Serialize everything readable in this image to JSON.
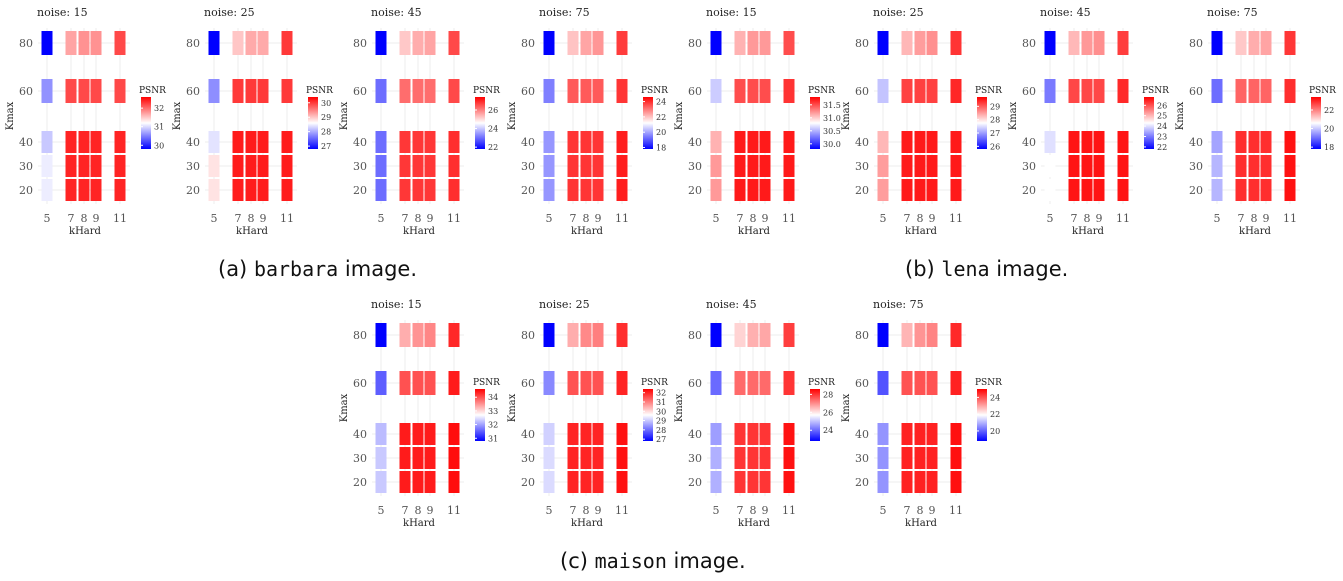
{
  "captions": [
    {
      "prefix": "(a) ",
      "mono": "barbara",
      "suffix": " image."
    },
    {
      "prefix": "(b) ",
      "mono": "lena",
      "suffix": " image."
    },
    {
      "prefix": "(c) ",
      "mono": "maison",
      "suffix": " image."
    }
  ],
  "colors": {
    "low": "#0000ff",
    "mid": "#ffffff",
    "high": "#ff0000",
    "grid": "#ececec"
  },
  "chart_data": [
    {
      "type": "heatmap",
      "title": "noise: 15",
      "xlabel": "kHard",
      "ylabel": "Kmax",
      "x_ticks": [
        5,
        7,
        8,
        9,
        11
      ],
      "y_ticks": [
        20,
        30,
        40,
        60,
        80
      ],
      "legend_title": "PSNR",
      "legend_ticks": [
        "32",
        "31",
        "30"
      ],
      "color_range": [
        29.8,
        32.6
      ],
      "values": [
        [
          31.1,
          32.4,
          32.4,
          32.4,
          32.4
        ],
        [
          31.1,
          32.4,
          32.4,
          32.4,
          32.4
        ],
        [
          30.9,
          32.4,
          32.4,
          32.4,
          32.4
        ],
        [
          30.6,
          32.2,
          32.2,
          32.2,
          32.2
        ],
        [
          29.8,
          31.7,
          31.8,
          31.8,
          32.2
        ]
      ]
    },
    {
      "type": "heatmap",
      "title": "noise: 25",
      "xlabel": "kHard",
      "ylabel": "Kmax",
      "x_ticks": [
        5,
        7,
        8,
        9,
        11
      ],
      "y_ticks": [
        20,
        30,
        40,
        60,
        80
      ],
      "legend_title": "PSNR",
      "legend_ticks": [
        "30",
        "29",
        "28",
        "27"
      ],
      "color_range": [
        26.8,
        30.4
      ],
      "values": [
        [
          28.8,
          30.2,
          30.2,
          30.2,
          30.2
        ],
        [
          28.8,
          30.2,
          30.2,
          30.2,
          30.2
        ],
        [
          28.4,
          30.2,
          30.2,
          30.2,
          30.2
        ],
        [
          27.8,
          30.0,
          30.0,
          30.0,
          30.0
        ],
        [
          26.8,
          29.0,
          29.2,
          29.2,
          30.0
        ]
      ]
    },
    {
      "type": "heatmap",
      "title": "noise: 45",
      "xlabel": "kHard",
      "ylabel": "Kmax",
      "x_ticks": [
        5,
        7,
        8,
        9,
        11
      ],
      "y_ticks": [
        20,
        30,
        40,
        60,
        80
      ],
      "legend_title": "PSNR",
      "legend_ticks": [
        "26",
        "24",
        "22"
      ],
      "color_range": [
        21.8,
        27.4
      ],
      "values": [
        [
          23.0,
          26.8,
          26.8,
          26.8,
          26.9
        ],
        [
          23.0,
          26.8,
          26.8,
          26.8,
          26.9
        ],
        [
          23.0,
          26.8,
          26.8,
          26.8,
          26.9
        ],
        [
          23.0,
          26.2,
          26.2,
          26.2,
          26.6
        ],
        [
          21.8,
          25.2,
          25.5,
          25.6,
          26.6
        ]
      ]
    },
    {
      "type": "heatmap",
      "title": "noise: 75",
      "xlabel": "kHard",
      "ylabel": "Kmax",
      "x_ticks": [
        5,
        7,
        8,
        9,
        11
      ],
      "y_ticks": [
        20,
        30,
        40,
        60,
        80
      ],
      "legend_title": "PSNR",
      "legend_ticks": [
        "24",
        "22",
        "20",
        "18"
      ],
      "color_range": [
        17.8,
        24.6
      ],
      "values": [
        [
          19.8,
          23.9,
          23.9,
          23.9,
          24.2
        ],
        [
          19.8,
          23.9,
          23.9,
          23.9,
          24.2
        ],
        [
          19.8,
          23.9,
          23.9,
          23.9,
          24.2
        ],
        [
          19.5,
          23.4,
          23.4,
          23.4,
          23.9
        ],
        [
          17.8,
          22.0,
          22.4,
          22.6,
          23.8
        ]
      ]
    },
    {
      "type": "heatmap",
      "title": "noise: 15",
      "xlabel": "kHard",
      "ylabel": "Kmax",
      "x_ticks": [
        5,
        7,
        8,
        9,
        11
      ],
      "y_ticks": [
        20,
        30,
        40,
        60,
        80
      ],
      "legend_title": "PSNR",
      "legend_ticks": [
        "31.5",
        "31.0",
        "30.5",
        "30.0"
      ],
      "color_range": [
        29.8,
        31.8
      ],
      "values": [
        [
          31.2,
          31.7,
          31.7,
          31.7,
          31.7
        ],
        [
          31.2,
          31.7,
          31.7,
          31.7,
          31.7
        ],
        [
          31.1,
          31.7,
          31.7,
          31.7,
          31.7
        ],
        [
          30.6,
          31.5,
          31.5,
          31.5,
          31.6
        ],
        [
          29.8,
          31.1,
          31.2,
          31.2,
          31.5
        ]
      ]
    },
    {
      "type": "heatmap",
      "title": "noise: 25",
      "xlabel": "kHard",
      "ylabel": "Kmax",
      "x_ticks": [
        5,
        7,
        8,
        9,
        11
      ],
      "y_ticks": [
        20,
        30,
        40,
        60,
        80
      ],
      "legend_title": "PSNR",
      "legend_ticks": [
        "29",
        "28",
        "27",
        "26"
      ],
      "color_range": [
        25.8,
        29.7
      ],
      "values": [
        [
          28.5,
          29.5,
          29.5,
          29.5,
          29.5
        ],
        [
          28.5,
          29.5,
          29.5,
          29.5,
          29.5
        ],
        [
          28.3,
          29.5,
          29.5,
          29.5,
          29.5
        ],
        [
          27.3,
          29.2,
          29.2,
          29.2,
          29.4
        ],
        [
          25.8,
          28.3,
          28.5,
          28.6,
          29.3
        ]
      ]
    },
    {
      "type": "heatmap",
      "title": "noise: 45",
      "xlabel": "kHard",
      "ylabel": "Kmax",
      "x_ticks": [
        5,
        7,
        8,
        9,
        11
      ],
      "y_ticks": [
        20,
        30,
        40,
        60,
        80
      ],
      "legend_title": "PSNR",
      "legend_ticks": [
        "26",
        "25",
        "24",
        "23",
        "22"
      ],
      "color_range": [
        21.8,
        26.8
      ],
      "values": [
        [
          24.3,
          26.6,
          26.6,
          26.6,
          26.6
        ],
        [
          24.3,
          26.6,
          26.6,
          26.6,
          26.6
        ],
        [
          24.0,
          26.6,
          26.6,
          26.6,
          26.6
        ],
        [
          23.0,
          26.1,
          26.1,
          26.1,
          26.4
        ],
        [
          21.8,
          25.0,
          25.3,
          25.4,
          26.2
        ]
      ]
    },
    {
      "type": "heatmap",
      "title": "noise: 75",
      "xlabel": "kHard",
      "ylabel": "Kmax",
      "x_ticks": [
        5,
        7,
        8,
        9,
        11
      ],
      "y_ticks": [
        20,
        30,
        40,
        60,
        80
      ],
      "legend_title": "PSNR",
      "legend_ticks": [
        "22",
        "20",
        "18"
      ],
      "color_range": [
        17.8,
        23.4
      ],
      "values": [
        [
          19.8,
          22.9,
          22.9,
          22.9,
          23.2
        ],
        [
          19.8,
          22.9,
          22.9,
          22.9,
          23.2
        ],
        [
          19.6,
          22.9,
          22.9,
          22.9,
          23.2
        ],
        [
          19.0,
          22.3,
          22.3,
          22.3,
          22.9
        ],
        [
          17.8,
          21.2,
          21.5,
          21.6,
          22.8
        ]
      ]
    },
    {
      "type": "heatmap",
      "title": "noise: 15",
      "xlabel": "kHard",
      "ylabel": "Kmax",
      "x_ticks": [
        5,
        7,
        8,
        9,
        11
      ],
      "y_ticks": [
        20,
        30,
        40,
        60,
        80
      ],
      "legend_title": "PSNR",
      "legend_ticks": [
        "34",
        "33",
        "32",
        "31"
      ],
      "color_range": [
        30.8,
        34.6
      ],
      "values": [
        [
          32.3,
          34.4,
          34.4,
          34.4,
          34.5
        ],
        [
          32.3,
          34.4,
          34.4,
          34.4,
          34.5
        ],
        [
          32.2,
          34.4,
          34.4,
          34.4,
          34.5
        ],
        [
          31.5,
          34.0,
          34.0,
          34.0,
          34.4
        ],
        [
          30.8,
          33.3,
          33.5,
          33.6,
          34.3
        ]
      ]
    },
    {
      "type": "heatmap",
      "title": "noise: 25",
      "xlabel": "kHard",
      "ylabel": "Kmax",
      "x_ticks": [
        5,
        7,
        8,
        9,
        11
      ],
      "y_ticks": [
        20,
        30,
        40,
        60,
        80
      ],
      "legend_title": "PSNR",
      "legend_ticks": [
        "32",
        "31",
        "30",
        "29",
        "28",
        "27"
      ],
      "color_range": [
        26.8,
        32.4
      ],
      "values": [
        [
          29.2,
          32.0,
          32.0,
          32.0,
          32.2
        ],
        [
          29.2,
          32.0,
          32.0,
          32.0,
          32.2
        ],
        [
          29.1,
          32.0,
          32.0,
          32.0,
          32.2
        ],
        [
          28.3,
          31.5,
          31.5,
          31.5,
          32.0
        ],
        [
          26.8,
          30.5,
          30.9,
          31.0,
          31.9
        ]
      ]
    },
    {
      "type": "heatmap",
      "title": "noise: 45",
      "xlabel": "kHard",
      "ylabel": "Kmax",
      "x_ticks": [
        5,
        7,
        8,
        9,
        11
      ],
      "y_ticks": [
        20,
        30,
        40,
        60,
        80
      ],
      "legend_title": "PSNR",
      "legend_ticks": [
        "28",
        "26",
        "24"
      ],
      "color_range": [
        22.8,
        28.6
      ],
      "values": [
        [
          24.8,
          28.0,
          28.0,
          28.0,
          28.4
        ],
        [
          24.8,
          28.0,
          28.0,
          28.0,
          28.4
        ],
        [
          24.6,
          28.0,
          28.0,
          28.0,
          28.4
        ],
        [
          24.0,
          27.4,
          27.4,
          27.4,
          28.0
        ],
        [
          22.8,
          26.2,
          26.6,
          26.7,
          27.9
        ]
      ]
    },
    {
      "type": "heatmap",
      "title": "noise: 75",
      "xlabel": "kHard",
      "ylabel": "Kmax",
      "x_ticks": [
        5,
        7,
        8,
        9,
        11
      ],
      "y_ticks": [
        20,
        30,
        40,
        60,
        80
      ],
      "legend_title": "PSNR",
      "legend_ticks": [
        "24",
        "22",
        "20"
      ],
      "color_range": [
        18.8,
        25.0
      ],
      "values": [
        [
          20.6,
          24.6,
          24.6,
          24.6,
          24.8
        ],
        [
          20.6,
          24.6,
          24.6,
          24.6,
          24.8
        ],
        [
          20.6,
          24.6,
          24.6,
          24.6,
          24.8
        ],
        [
          19.8,
          24.0,
          24.0,
          24.0,
          24.6
        ],
        [
          18.8,
          22.8,
          23.2,
          23.4,
          24.5
        ]
      ]
    }
  ]
}
